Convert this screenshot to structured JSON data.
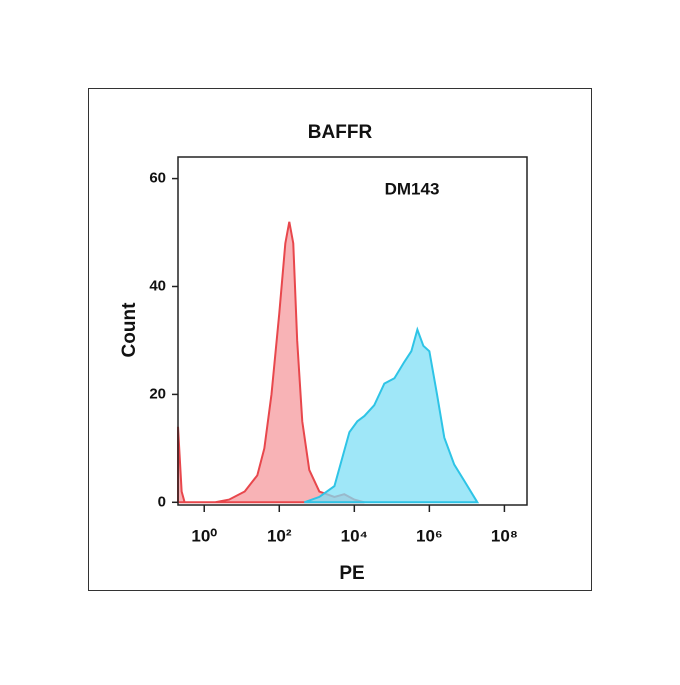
{
  "chart_data": {
    "type": "area",
    "title": "BAFFR",
    "annotation": "DM143",
    "xlabel": "PE",
    "ylabel": "Count",
    "xscale": "log",
    "xlim": [
      0.2,
      400000000
    ],
    "ylim": [
      -0.5,
      64
    ],
    "xticks": [
      {
        "value": 1,
        "label": "10⁰"
      },
      {
        "value": 100,
        "label": "10²"
      },
      {
        "value": 10000,
        "label": "10⁴"
      },
      {
        "value": 1000000,
        "label": "10⁶"
      },
      {
        "value": 100000000,
        "label": "10⁸"
      }
    ],
    "yticks": [
      0,
      20,
      40,
      60
    ],
    "series": [
      {
        "color": "#e8474c",
        "fill": "#f59a9e",
        "x": [
          0.2,
          0.25,
          0.3,
          1.9,
          4.6,
          12,
          26,
          40,
          62,
          100,
          145,
          185,
          236,
          300,
          410,
          630,
          1170,
          2950,
          5400,
          10000,
          18600
        ],
        "values": [
          14,
          2,
          0,
          0,
          0.5,
          2,
          5,
          10,
          20,
          35,
          48,
          52,
          48,
          30,
          15,
          6,
          2,
          1,
          1.5,
          0.5,
          0
        ]
      },
      {
        "color": "#2ec4e6",
        "fill": "#7fdff5",
        "x": [
          465,
          1170,
          2950,
          7400,
          12000,
          18600,
          34000,
          63000,
          117000,
          214000,
          331000,
          479000,
          692000,
          1000000,
          1600000,
          2500000,
          4600000,
          8500000,
          19000000
        ],
        "values": [
          0,
          1,
          3,
          13,
          15,
          16,
          18,
          22,
          23,
          26,
          28,
          32,
          29,
          28,
          20,
          12,
          7,
          4,
          0
        ]
      }
    ]
  }
}
